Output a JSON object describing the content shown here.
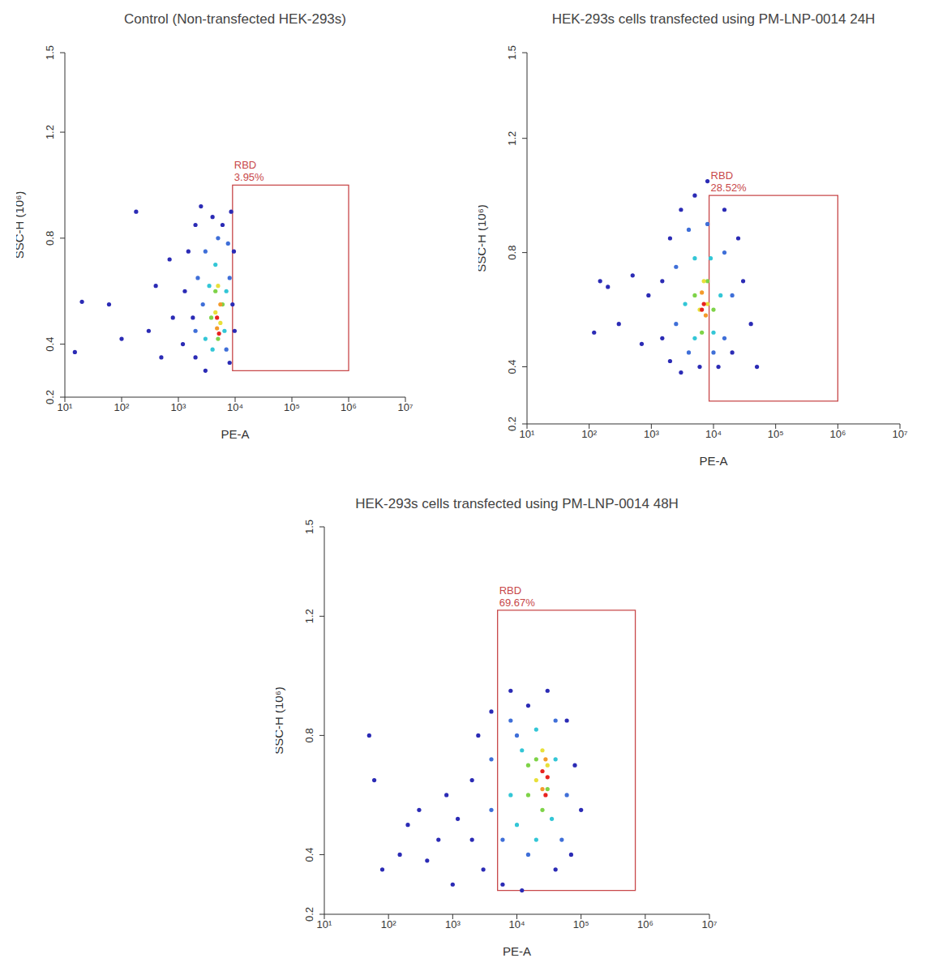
{
  "chart_data": [
    {
      "type": "scatter",
      "title": "Control (Non-transfected HEK-293s)",
      "x_label": "PE-A",
      "y_label": "SSC-H (10⁶)",
      "log": "x",
      "xlim": [
        10,
        10000000
      ],
      "xticks": [
        {
          "value": 10,
          "label": "10¹"
        },
        {
          "value": 100,
          "label": "10²"
        },
        {
          "value": 1000,
          "label": "10³"
        },
        {
          "value": 10000,
          "label": "10⁴"
        },
        {
          "value": 100000,
          "label": "10⁵"
        },
        {
          "value": 1000000,
          "label": "10⁶"
        },
        {
          "value": 10000000,
          "label": "10⁷"
        }
      ],
      "ylim": [
        0.2,
        1.5
      ],
      "yticks": [
        0.2,
        0.4,
        0.8,
        1.2,
        1.5
      ],
      "x": [
        15,
        20,
        60,
        100,
        180,
        300,
        400,
        500,
        700,
        800,
        1200,
        1300,
        1500,
        2000,
        2000,
        2500,
        3000,
        1800,
        8000,
        9000,
        9500,
        8500,
        6000,
        4000,
        9800,
        2000,
        2200,
        3000,
        7000,
        8000,
        7500,
        5000,
        2700,
        3000,
        3500,
        4500,
        6500,
        7000,
        4000,
        3800,
        4500,
        6000,
        5000,
        4500,
        5500,
        5000,
        4800,
        5500,
        5200,
        4800
      ],
      "y": [
        0.37,
        0.56,
        0.55,
        0.42,
        0.9,
        0.45,
        0.62,
        0.35,
        0.72,
        0.5,
        0.4,
        0.6,
        0.75,
        0.35,
        0.85,
        0.92,
        0.3,
        0.5,
        0.33,
        0.55,
        0.75,
        0.9,
        0.85,
        0.88,
        0.45,
        0.45,
        0.65,
        0.75,
        0.38,
        0.65,
        0.78,
        0.8,
        0.55,
        0.42,
        0.62,
        0.7,
        0.45,
        0.6,
        0.38,
        0.5,
        0.6,
        0.55,
        0.42,
        0.52,
        0.48,
        0.62,
        0.46,
        0.55,
        0.44,
        0.5
      ],
      "colors": [
        "#2b2bb5",
        "#2b2bb5",
        "#2b2bb5",
        "#2b2bb5",
        "#2b2bb5",
        "#2b2bb5",
        "#2b2bb5",
        "#2b2bb5",
        "#2b2bb5",
        "#2b2bb5",
        "#2b2bb5",
        "#2b2bb5",
        "#2b2bb5",
        "#2b2bb5",
        "#2b2bb5",
        "#2b2bb5",
        "#2b2bb5",
        "#2b2bb5",
        "#2b2bb5",
        "#2b2bb5",
        "#2b2bb5",
        "#2b2bb5",
        "#2b2bb5",
        "#2b2bb5",
        "#2b2bb5",
        "#3f6fd8",
        "#3f6fd8",
        "#3f6fd8",
        "#3f6fd8",
        "#3f6fd8",
        "#3f6fd8",
        "#3f6fd8",
        "#3f6fd8",
        "#33c6d6",
        "#33c6d6",
        "#33c6d6",
        "#33c6d6",
        "#33c6d6",
        "#33c6d6",
        "#7ed348",
        "#7ed348",
        "#7ed348",
        "#7ed348",
        "#e8e03a",
        "#e8e03a",
        "#e8e03a",
        "#f39a2b",
        "#f39a2b",
        "#e8231f",
        "#e8231f"
      ],
      "gate": {
        "label": "RBD",
        "text": "3.95%",
        "x": [
          9000,
          1000000
        ],
        "y": [
          0.3,
          1.0
        ]
      }
    },
    {
      "type": "scatter",
      "title": "HEK-293s cells transfected using PM-LNP-0014 24H",
      "x_label": "PE-A",
      "y_label": "SSC-H (10⁶)",
      "log": "x",
      "xlim": [
        10,
        10000000
      ],
      "xticks": [
        {
          "value": 10,
          "label": "10¹"
        },
        {
          "value": 100,
          "label": "10²"
        },
        {
          "value": 1000,
          "label": "10³"
        },
        {
          "value": 10000,
          "label": "10⁴"
        },
        {
          "value": 100000,
          "label": "10⁵"
        },
        {
          "value": 1000000,
          "label": "10⁶"
        },
        {
          "value": 10000000,
          "label": "10⁷"
        }
      ],
      "ylim": [
        0.2,
        1.5
      ],
      "yticks": [
        0.2,
        0.4,
        0.8,
        1.2,
        1.5
      ],
      "x": [
        150,
        120,
        200,
        300,
        500,
        700,
        900,
        1500,
        1500,
        2000,
        2000,
        3000,
        3000,
        5000,
        8000,
        15000,
        25000,
        30000,
        40000,
        20000,
        12000,
        6000,
        50000,
        2500,
        2500,
        4000,
        8000,
        15000,
        20000,
        15000,
        4000,
        10000,
        3500,
        5000,
        9000,
        13000,
        10000,
        5000,
        5000,
        8000,
        10000,
        6500,
        6000,
        8000,
        7000,
        6500,
        7500,
        7000,
        6500
      ],
      "y": [
        0.7,
        0.52,
        0.68,
        0.55,
        0.72,
        0.48,
        0.65,
        0.5,
        0.7,
        0.42,
        0.85,
        0.38,
        0.95,
        1.0,
        1.05,
        0.95,
        0.85,
        0.7,
        0.55,
        0.45,
        0.4,
        0.4,
        0.4,
        0.55,
        0.75,
        0.88,
        0.9,
        0.8,
        0.65,
        0.5,
        0.45,
        0.45,
        0.62,
        0.78,
        0.78,
        0.65,
        0.52,
        0.5,
        0.65,
        0.7,
        0.6,
        0.52,
        0.6,
        0.62,
        0.7,
        0.66,
        0.58,
        0.62,
        0.6
      ],
      "colors": [
        "#2b2bb5",
        "#2b2bb5",
        "#2b2bb5",
        "#2b2bb5",
        "#2b2bb5",
        "#2b2bb5",
        "#2b2bb5",
        "#2b2bb5",
        "#2b2bb5",
        "#2b2bb5",
        "#2b2bb5",
        "#2b2bb5",
        "#2b2bb5",
        "#2b2bb5",
        "#2b2bb5",
        "#2b2bb5",
        "#2b2bb5",
        "#2b2bb5",
        "#2b2bb5",
        "#2b2bb5",
        "#2b2bb5",
        "#2b2bb5",
        "#2b2bb5",
        "#3f6fd8",
        "#3f6fd8",
        "#3f6fd8",
        "#3f6fd8",
        "#3f6fd8",
        "#3f6fd8",
        "#3f6fd8",
        "#3f6fd8",
        "#3f6fd8",
        "#33c6d6",
        "#33c6d6",
        "#33c6d6",
        "#33c6d6",
        "#33c6d6",
        "#33c6d6",
        "#7ed348",
        "#7ed348",
        "#7ed348",
        "#7ed348",
        "#e8e03a",
        "#e8e03a",
        "#e8e03a",
        "#f39a2b",
        "#f39a2b",
        "#e8231f",
        "#e8231f"
      ],
      "gate": {
        "label": "RBD",
        "text": "28.52%",
        "x": [
          8500,
          1000000
        ],
        "y": [
          0.28,
          1.0
        ]
      }
    },
    {
      "type": "scatter",
      "title": "HEK-293s cells transfected using PM-LNP-0014 48H",
      "x_label": "PE-A",
      "y_label": "SSC-H (10⁶)",
      "log": "x",
      "xlim": [
        10,
        10000000
      ],
      "xticks": [
        {
          "value": 10,
          "label": "10¹"
        },
        {
          "value": 100,
          "label": "10²"
        },
        {
          "value": 1000,
          "label": "10³"
        },
        {
          "value": 10000,
          "label": "10⁴"
        },
        {
          "value": 100000,
          "label": "10⁵"
        },
        {
          "value": 1000000,
          "label": "10⁶"
        },
        {
          "value": 10000000,
          "label": "10⁷"
        }
      ],
      "ylim": [
        0.2,
        1.5
      ],
      "yticks": [
        0.2,
        0.4,
        0.8,
        1.2,
        1.5
      ],
      "x": [
        50,
        60,
        80,
        150,
        200,
        300,
        400,
        600,
        800,
        1000,
        1200,
        2000,
        2000,
        2500,
        3000,
        4000,
        6000,
        8000,
        15000,
        30000,
        60000,
        80000,
        100000,
        70000,
        40000,
        12000,
        4000,
        4000,
        6000,
        8000,
        15000,
        40000,
        60000,
        50000,
        10000,
        8000,
        10000,
        12000,
        20000,
        40000,
        35000,
        20000,
        15000,
        20000,
        30000,
        25000,
        15000,
        20000,
        25000,
        30000,
        25000,
        28000,
        25000,
        30000,
        28000
      ],
      "y": [
        0.8,
        0.65,
        0.35,
        0.4,
        0.5,
        0.55,
        0.38,
        0.45,
        0.6,
        0.3,
        0.52,
        0.45,
        0.65,
        0.8,
        0.35,
        0.88,
        0.3,
        0.95,
        0.9,
        0.95,
        0.85,
        0.7,
        0.55,
        0.4,
        0.35,
        0.28,
        0.55,
        0.72,
        0.45,
        0.85,
        0.4,
        0.85,
        0.6,
        0.45,
        0.8,
        0.6,
        0.5,
        0.75,
        0.82,
        0.72,
        0.52,
        0.45,
        0.6,
        0.72,
        0.62,
        0.55,
        0.7,
        0.65,
        0.75,
        0.7,
        0.62,
        0.72,
        0.68,
        0.66,
        0.6
      ],
      "colors": [
        "#2b2bb5",
        "#2b2bb5",
        "#2b2bb5",
        "#2b2bb5",
        "#2b2bb5",
        "#2b2bb5",
        "#2b2bb5",
        "#2b2bb5",
        "#2b2bb5",
        "#2b2bb5",
        "#2b2bb5",
        "#2b2bb5",
        "#2b2bb5",
        "#2b2bb5",
        "#2b2bb5",
        "#2b2bb5",
        "#2b2bb5",
        "#2b2bb5",
        "#2b2bb5",
        "#2b2bb5",
        "#2b2bb5",
        "#2b2bb5",
        "#2b2bb5",
        "#2b2bb5",
        "#2b2bb5",
        "#2b2bb5",
        "#3f6fd8",
        "#3f6fd8",
        "#3f6fd8",
        "#3f6fd8",
        "#3f6fd8",
        "#3f6fd8",
        "#3f6fd8",
        "#3f6fd8",
        "#3f6fd8",
        "#33c6d6",
        "#33c6d6",
        "#33c6d6",
        "#33c6d6",
        "#33c6d6",
        "#33c6d6",
        "#33c6d6",
        "#7ed348",
        "#7ed348",
        "#7ed348",
        "#7ed348",
        "#7ed348",
        "#e8e03a",
        "#e8e03a",
        "#e8e03a",
        "#f39a2b",
        "#f39a2b",
        "#e8231f",
        "#e8231f",
        "#e8231f"
      ],
      "gate": {
        "label": "RBD",
        "text": "69.67%",
        "x": [
          5000,
          700000
        ],
        "y": [
          0.28,
          1.22
        ]
      }
    }
  ]
}
